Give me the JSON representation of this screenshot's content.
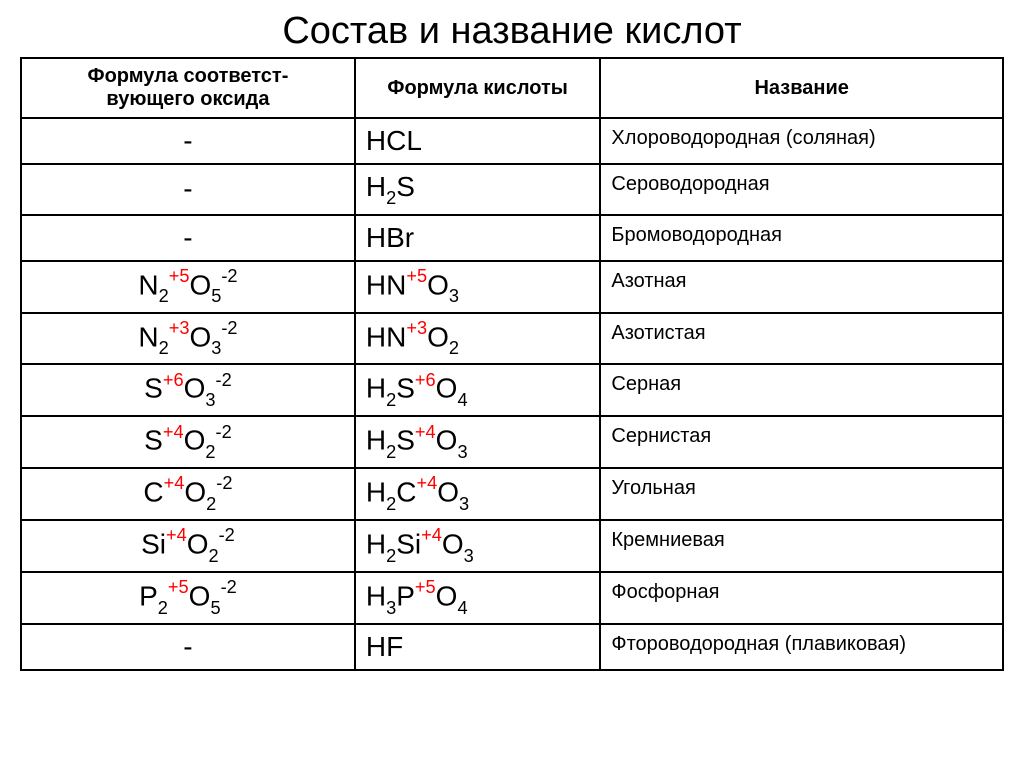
{
  "title": "Состав и название кислот",
  "columns": {
    "oxide": "Формула соответст-\nвующего оксида",
    "acid": "Формула кислоты",
    "name": "Название"
  },
  "rows": [
    {
      "oxide": [
        {
          "t": "-"
        }
      ],
      "acid": [
        {
          "t": "HCL"
        }
      ],
      "name": "Хлороводородная (соляная)"
    },
    {
      "oxide": [
        {
          "t": "-"
        }
      ],
      "acid": [
        {
          "t": "H"
        },
        {
          "t": "2",
          "sub": true
        },
        {
          "t": "S"
        }
      ],
      "name": "Сероводородная"
    },
    {
      "oxide": [
        {
          "t": "-"
        }
      ],
      "acid": [
        {
          "t": "HBr"
        }
      ],
      "name": "Бромоводородная"
    },
    {
      "oxide": [
        {
          "t": "N"
        },
        {
          "t": "2",
          "sub": true
        },
        {
          "t": "+5",
          "sup": true,
          "red": true
        },
        {
          "t": "O"
        },
        {
          "t": "5",
          "sub": true
        },
        {
          "t": "-2",
          "sup": true
        }
      ],
      "acid": [
        {
          "t": "HN"
        },
        {
          "t": "+5",
          "sup": true,
          "red": true
        },
        {
          "t": "O"
        },
        {
          "t": "3",
          "sub": true
        }
      ],
      "name": "Азотная"
    },
    {
      "oxide": [
        {
          "t": "N"
        },
        {
          "t": "2",
          "sub": true
        },
        {
          "t": "+3",
          "sup": true,
          "red": true
        },
        {
          "t": "O"
        },
        {
          "t": "3",
          "sub": true
        },
        {
          "t": "-2",
          "sup": true
        }
      ],
      "acid": [
        {
          "t": "HN"
        },
        {
          "t": "+3",
          "sup": true,
          "red": true
        },
        {
          "t": "O"
        },
        {
          "t": "2",
          "sub": true
        }
      ],
      "name": "Азотистая"
    },
    {
      "oxide": [
        {
          "t": "S"
        },
        {
          "t": "+6",
          "sup": true,
          "red": true
        },
        {
          "t": "O"
        },
        {
          "t": "3",
          "sub": true
        },
        {
          "t": "-2",
          "sup": true
        }
      ],
      "acid": [
        {
          "t": "H"
        },
        {
          "t": "2",
          "sub": true
        },
        {
          "t": "S"
        },
        {
          "t": "+6",
          "sup": true,
          "red": true
        },
        {
          "t": "O"
        },
        {
          "t": "4",
          "sub": true
        }
      ],
      "name": "Серная"
    },
    {
      "oxide": [
        {
          "t": "S"
        },
        {
          "t": "+4",
          "sup": true,
          "red": true
        },
        {
          "t": "O"
        },
        {
          "t": "2",
          "sub": true
        },
        {
          "t": "-2",
          "sup": true
        }
      ],
      "acid": [
        {
          "t": "H"
        },
        {
          "t": "2",
          "sub": true
        },
        {
          "t": "S"
        },
        {
          "t": "+4",
          "sup": true,
          "red": true
        },
        {
          "t": "O"
        },
        {
          "t": "3",
          "sub": true
        }
      ],
      "name": "Сернистая"
    },
    {
      "oxide": [
        {
          "t": "C"
        },
        {
          "t": "+4",
          "sup": true,
          "red": true
        },
        {
          "t": "O"
        },
        {
          "t": "2",
          "sub": true
        },
        {
          "t": "-2",
          "sup": true
        }
      ],
      "acid": [
        {
          "t": "H"
        },
        {
          "t": "2",
          "sub": true
        },
        {
          "t": "C"
        },
        {
          "t": "+4",
          "sup": true,
          "red": true
        },
        {
          "t": "O"
        },
        {
          "t": "3",
          "sub": true
        }
      ],
      "name": "Угольная"
    },
    {
      "oxide": [
        {
          "t": "Si"
        },
        {
          "t": "+4",
          "sup": true,
          "red": true
        },
        {
          "t": "O"
        },
        {
          "t": "2",
          "sub": true
        },
        {
          "t": "-2",
          "sup": true
        }
      ],
      "acid": [
        {
          "t": "H"
        },
        {
          "t": "2",
          "sub": true
        },
        {
          "t": "Si"
        },
        {
          "t": "+4",
          "sup": true,
          "red": true
        },
        {
          "t": "O"
        },
        {
          "t": "3",
          "sub": true
        }
      ],
      "name": "Кремниевая"
    },
    {
      "oxide": [
        {
          "t": "P"
        },
        {
          "t": "2",
          "sub": true
        },
        {
          "t": "+5",
          "sup": true,
          "red": true
        },
        {
          "t": "O"
        },
        {
          "t": "5",
          "sub": true
        },
        {
          "t": "-2",
          "sup": true
        }
      ],
      "acid": [
        {
          "t": "H"
        },
        {
          "t": "3",
          "sub": true
        },
        {
          "t": "P"
        },
        {
          "t": "+5",
          "sup": true,
          "red": true
        },
        {
          "t": "O"
        },
        {
          "t": "4",
          "sub": true
        }
      ],
      "name": "Фосфорная"
    },
    {
      "oxide": [
        {
          "t": "-"
        }
      ],
      "acid": [
        {
          "t": "HF"
        }
      ],
      "name": "Фтороводородная (плавиковая)"
    }
  ]
}
